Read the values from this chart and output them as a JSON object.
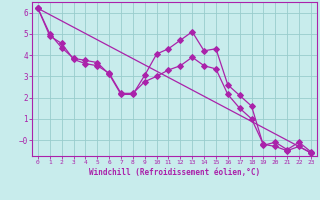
{
  "xlabel": "Windchill (Refroidissement éolien,°C)",
  "bg_color": "#c8ecec",
  "line_color": "#aa22aa",
  "grid_color": "#99cccc",
  "xlim": [
    -0.5,
    23.5
  ],
  "ylim": [
    -0.75,
    6.5
  ],
  "xticks": [
    0,
    1,
    2,
    3,
    4,
    5,
    6,
    7,
    8,
    9,
    10,
    11,
    12,
    13,
    14,
    15,
    16,
    17,
    18,
    19,
    20,
    21,
    22,
    23
  ],
  "yticks": [
    0,
    1,
    2,
    3,
    4,
    5,
    6
  ],
  "line1_x": [
    0,
    1,
    2,
    3,
    4,
    5,
    6,
    7,
    8,
    9,
    10,
    11,
    12,
    13,
    14,
    15,
    16,
    17,
    18,
    19,
    20,
    21,
    22,
    23
  ],
  "line1_y": [
    6.2,
    5.0,
    4.35,
    3.85,
    3.75,
    3.65,
    3.1,
    2.15,
    2.15,
    3.05,
    4.05,
    4.3,
    4.7,
    5.1,
    4.2,
    4.3,
    2.6,
    2.1,
    1.6,
    -0.25,
    -0.1,
    -0.45,
    -0.1,
    -0.55
  ],
  "line2_x": [
    0,
    1,
    2,
    3,
    4,
    5,
    6,
    7,
    8,
    9,
    10,
    11,
    12,
    13,
    14,
    15,
    16,
    17,
    18,
    19,
    20,
    21,
    22,
    23
  ],
  "line2_y": [
    6.2,
    4.9,
    4.55,
    3.8,
    3.6,
    3.5,
    3.15,
    2.2,
    2.2,
    2.75,
    3.0,
    3.3,
    3.5,
    3.9,
    3.5,
    3.35,
    2.15,
    1.5,
    1.0,
    -0.2,
    -0.3,
    -0.5,
    -0.3,
    -0.6
  ],
  "line3_x": [
    0,
    23
  ],
  "line3_y": [
    6.2,
    -0.6
  ]
}
